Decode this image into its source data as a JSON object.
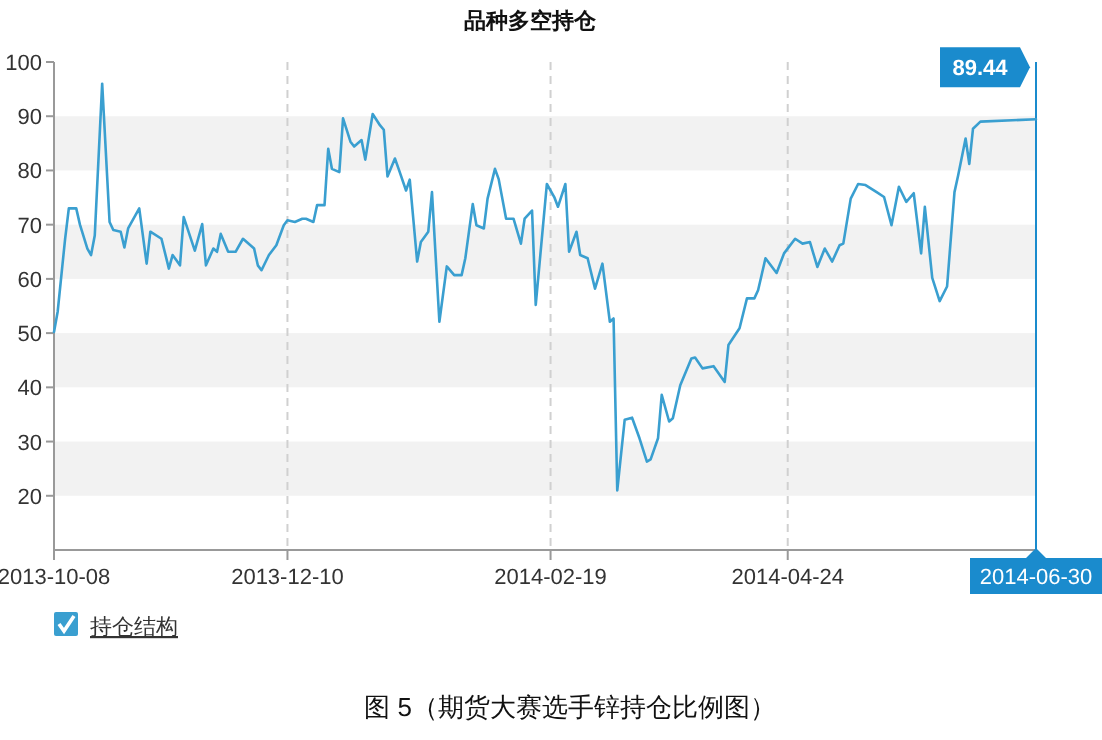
{
  "chart_data": {
    "type": "line",
    "title": "品种多空持仓",
    "x": [
      "2013-10-08",
      "2013-10-09",
      "2013-10-11",
      "2013-10-12",
      "2013-10-14",
      "2013-10-15",
      "2013-10-17",
      "2013-10-18",
      "2013-10-19",
      "2013-10-21",
      "2013-10-23",
      "2013-10-24",
      "2013-10-26",
      "2013-10-27",
      "2013-10-28",
      "2013-10-31",
      "2013-11-02",
      "2013-11-03",
      "2013-11-06",
      "2013-11-08",
      "2013-11-09",
      "2013-11-11",
      "2013-11-12",
      "2013-11-15",
      "2013-11-17",
      "2013-11-18",
      "2013-11-20",
      "2013-11-21",
      "2013-11-22",
      "2013-11-24",
      "2013-11-26",
      "2013-11-28",
      "2013-11-29",
      "2013-12-01",
      "2013-12-02",
      "2013-12-03",
      "2013-12-05",
      "2013-12-07",
      "2013-12-09",
      "2013-12-10",
      "2013-12-12",
      "2013-12-14",
      "2013-12-15",
      "2013-12-17",
      "2013-12-18",
      "2013-12-20",
      "2013-12-21",
      "2013-12-22",
      "2013-12-24",
      "2013-12-25",
      "2013-12-27",
      "2013-12-28",
      "2013-12-30",
      "2013-12-31",
      "2014-01-02",
      "2014-01-04",
      "2014-01-05",
      "2014-01-06",
      "2014-01-08",
      "2014-01-09",
      "2014-01-11",
      "2014-01-12",
      "2014-01-14",
      "2014-01-15",
      "2014-01-17",
      "2014-01-18",
      "2014-01-20",
      "2014-01-22",
      "2014-01-24",
      "2014-01-26",
      "2014-01-27",
      "2014-01-29",
      "2014-01-30",
      "2014-02-01",
      "2014-02-02",
      "2014-02-04",
      "2014-02-05",
      "2014-02-07",
      "2014-02-09",
      "2014-02-11",
      "2014-02-12",
      "2014-02-14",
      "2014-02-15",
      "2014-02-18",
      "2014-02-20",
      "2014-02-21",
      "2014-02-23",
      "2014-02-24",
      "2014-02-26",
      "2014-02-27",
      "2014-03-01",
      "2014-03-03",
      "2014-03-05",
      "2014-03-07",
      "2014-03-08",
      "2014-03-09",
      "2014-03-11",
      "2014-03-13",
      "2014-03-15",
      "2014-03-17",
      "2014-03-18",
      "2014-03-20",
      "2014-03-21",
      "2014-03-23",
      "2014-03-24",
      "2014-03-26",
      "2014-03-29",
      "2014-03-30",
      "2014-04-01",
      "2014-04-04",
      "2014-04-07",
      "2014-04-08",
      "2014-04-11",
      "2014-04-13",
      "2014-04-15",
      "2014-04-16",
      "2014-04-18",
      "2014-04-21",
      "2014-04-23",
      "2014-04-26",
      "2014-04-28",
      "2014-04-30",
      "2014-05-02",
      "2014-05-04",
      "2014-05-06",
      "2014-05-08",
      "2014-05-09",
      "2014-05-11",
      "2014-05-13",
      "2014-05-15",
      "2014-05-18",
      "2014-05-20",
      "2014-05-22",
      "2014-05-24",
      "2014-05-26",
      "2014-05-28",
      "2014-05-30",
      "2014-05-31",
      "2014-06-02",
      "2014-06-04",
      "2014-06-06",
      "2014-06-08",
      "2014-06-09",
      "2014-06-11",
      "2014-06-12",
      "2014-06-13",
      "2014-06-15",
      "2014-06-30"
    ],
    "series": [
      {
        "name": "持仓结构",
        "color": "#3a9fd0",
        "values": [
          50.2,
          54,
          67.4,
          73,
          73,
          70,
          65.6,
          64.4,
          68,
          96,
          70.5,
          69,
          68.7,
          65.8,
          69.3,
          73,
          62.8,
          68.7,
          67.4,
          61.9,
          64.4,
          62.5,
          71.4,
          65.2,
          70.1,
          62.5,
          65.6,
          65,
          68.3,
          65,
          65,
          67.4,
          66.8,
          65.6,
          62.5,
          61.6,
          64.4,
          66.2,
          69.9,
          70.8,
          70.5,
          71.1,
          71.1,
          70.5,
          73.6,
          73.6,
          84,
          80.3,
          79.7,
          89.6,
          85.3,
          84.4,
          85.6,
          82,
          90.4,
          88.3,
          87.5,
          78.9,
          82.2,
          80.3,
          76.3,
          78.3,
          63.2,
          66.8,
          68.7,
          76,
          52.1,
          62.3,
          60.7,
          60.7,
          63.8,
          73.8,
          69.9,
          69.3,
          74.8,
          80.3,
          78.4,
          71.1,
          71.1,
          66.5,
          71.1,
          72.6,
          55.2,
          77.5,
          75.1,
          73.3,
          77.5,
          65,
          68.7,
          64.4,
          63.8,
          58.2,
          62.8,
          52.1,
          52.7,
          21,
          34,
          34.4,
          30.6,
          26.3,
          26.7,
          30.6,
          38.6,
          33.7,
          34.3,
          40.4,
          45.3,
          45.5,
          43.5,
          43.9,
          41,
          47.8,
          50.9,
          56.4,
          56.4,
          57.9,
          63.8,
          61.1,
          64.7,
          67.4,
          66.5,
          66.8,
          62.2,
          65.6,
          63.2,
          66.2,
          66.5,
          74.8,
          77.5,
          77.3,
          76,
          75.1,
          69.9,
          77,
          74.2,
          75.8,
          64.7,
          73.3,
          60.2,
          55.9,
          58.6,
          76,
          79.1,
          85.9,
          81.2,
          87.7,
          89,
          89.44
        ]
      }
    ],
    "xlim": [
      "2013-10-08",
      "2014-06-30"
    ],
    "xticks": [
      "2013-10-08",
      "2013-12-10",
      "2014-02-19",
      "2014-04-24",
      "2014-06-30"
    ],
    "ylim": [
      10,
      100
    ],
    "yticks": [
      20,
      30,
      40,
      50,
      60,
      70,
      80,
      90,
      100
    ],
    "grid": true,
    "legend": "bottom left",
    "marker": "none",
    "line_style": "solid",
    "ref_lines": [
      {
        "axis": "x",
        "value": "2014-06-30",
        "color": "#1a8bcd"
      }
    ],
    "annotations": [
      {
        "text": "89.44",
        "x": "2014-06-30",
        "y": 89.44
      },
      "图 5（期货大赛选手锌持仓比例图）"
    ]
  }
}
